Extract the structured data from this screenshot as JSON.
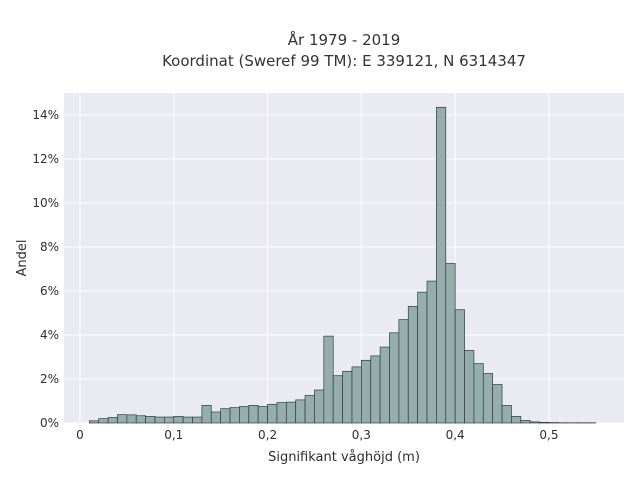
{
  "chart_data": {
    "type": "bar",
    "title": "År 1979 - 2019",
    "subtitle": "Koordinat (Sweref 99 TM): E 339121, N 6314347",
    "xlabel": "Signifikant våghöjd (m)",
    "ylabel": "Andel",
    "xlim": [
      -0.017,
      0.58
    ],
    "ylim": [
      0,
      15
    ],
    "x_ticks": [
      {
        "value": 0,
        "label": "0"
      },
      {
        "value": 0.1,
        "label": "0,1"
      },
      {
        "value": 0.2,
        "label": "0,2"
      },
      {
        "value": 0.3,
        "label": "0,3"
      },
      {
        "value": 0.4,
        "label": "0,4"
      },
      {
        "value": 0.5,
        "label": "0,5"
      }
    ],
    "y_ticks": [
      {
        "value": 0,
        "label": "0%"
      },
      {
        "value": 2,
        "label": "2%"
      },
      {
        "value": 4,
        "label": "4%"
      },
      {
        "value": 6,
        "label": "6%"
      },
      {
        "value": 8,
        "label": "8%"
      },
      {
        "value": 10,
        "label": "10%"
      },
      {
        "value": 12,
        "label": "12%"
      },
      {
        "value": 14,
        "label": "14%"
      }
    ],
    "bin_width": 0.01,
    "bin_starts": [
      0.01,
      0.02,
      0.03,
      0.04,
      0.05,
      0.06,
      0.07,
      0.08,
      0.09,
      0.1,
      0.11,
      0.12,
      0.13,
      0.14,
      0.15,
      0.16,
      0.17,
      0.18,
      0.19,
      0.2,
      0.21,
      0.22,
      0.23,
      0.24,
      0.25,
      0.26,
      0.27,
      0.28,
      0.29,
      0.3,
      0.31,
      0.32,
      0.33,
      0.34,
      0.35,
      0.36,
      0.37,
      0.38,
      0.39,
      0.4,
      0.41,
      0.42,
      0.43,
      0.44,
      0.45,
      0.46,
      0.47,
      0.48,
      0.49,
      0.5,
      0.51,
      0.52,
      0.53,
      0.54
    ],
    "values": [
      0.1,
      0.2,
      0.25,
      0.38,
      0.37,
      0.33,
      0.3,
      0.27,
      0.27,
      0.3,
      0.27,
      0.27,
      0.8,
      0.5,
      0.65,
      0.7,
      0.75,
      0.8,
      0.75,
      0.85,
      0.93,
      0.95,
      1.05,
      1.25,
      1.5,
      3.95,
      2.15,
      2.35,
      2.55,
      2.85,
      3.05,
      3.45,
      4.1,
      4.7,
      5.3,
      5.95,
      6.45,
      14.35,
      7.25,
      5.15,
      3.3,
      2.7,
      2.25,
      1.75,
      0.8,
      0.3,
      0.12,
      0.05,
      0.03,
      0.02,
      0.01,
      0.01,
      0.01,
      0.01
    ],
    "grid": true,
    "legend": "none",
    "colors": {
      "bar_fill": "#95aeab",
      "bar_edge": "#2f3d3b",
      "plot_bg": "#eaeaf2",
      "grid": "#ffffff"
    }
  }
}
